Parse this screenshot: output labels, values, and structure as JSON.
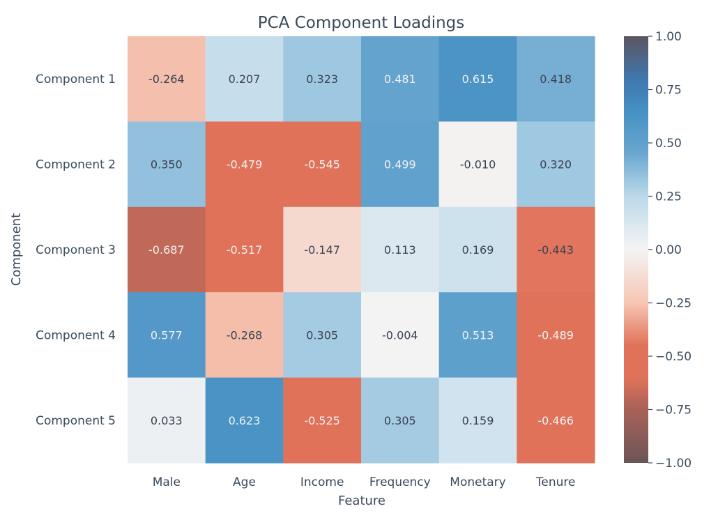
{
  "chart_data": {
    "type": "heatmap",
    "title": "PCA Component Loadings",
    "xlabel": "Feature",
    "ylabel": "Component",
    "x_categories": [
      "Male",
      "Age",
      "Income",
      "Frequency",
      "Monetary",
      "Tenure"
    ],
    "y_categories": [
      "Component 1",
      "Component 2",
      "Component 3",
      "Component 4",
      "Component 5"
    ],
    "values": [
      [
        -0.264,
        0.207,
        0.323,
        0.481,
        0.615,
        0.418
      ],
      [
        0.35,
        -0.479,
        -0.545,
        0.499,
        -0.01,
        0.32
      ],
      [
        -0.687,
        -0.517,
        -0.147,
        0.113,
        0.169,
        -0.443
      ],
      [
        0.577,
        -0.268,
        0.305,
        -0.004,
        0.513,
        -0.489
      ],
      [
        0.033,
        0.623,
        -0.525,
        0.305,
        0.159,
        -0.466
      ]
    ],
    "cell_labels": [
      [
        "-0.264",
        "0.207",
        "0.323",
        "0.481",
        "0.615",
        "0.418"
      ],
      [
        "0.350",
        "-0.479",
        "-0.545",
        "0.499",
        "-0.010",
        "0.320"
      ],
      [
        "-0.687",
        "-0.517",
        "-0.147",
        "0.113",
        "0.169",
        "-0.443"
      ],
      [
        "0.577",
        "-0.268",
        "0.305",
        "-0.004",
        "0.513",
        "-0.489"
      ],
      [
        "0.033",
        "0.623",
        "-0.525",
        "0.305",
        "0.159",
        "-0.466"
      ]
    ],
    "colorbar": {
      "vmin": -1.0,
      "vmax": 1.0,
      "ticks": [
        1.0,
        0.75,
        0.5,
        0.25,
        0.0,
        -0.25,
        -0.5,
        -0.75,
        -1.0
      ],
      "tick_labels": [
        "1.00",
        "0.75",
        "0.50",
        "0.25",
        "0.00",
        "−0.25",
        "−0.50",
        "−0.75",
        "−1.00"
      ],
      "colormap": "diverging",
      "colors": {
        "negative_extreme": "#6b5557",
        "negative_strong": "#e0725a",
        "negative_light": "#f6c6b3",
        "neutral": "#f4f4f4",
        "positive_light": "#bcd9ea",
        "positive_strong": "#4590c3",
        "positive_extreme": "#5c5460"
      }
    },
    "grid": false
  }
}
